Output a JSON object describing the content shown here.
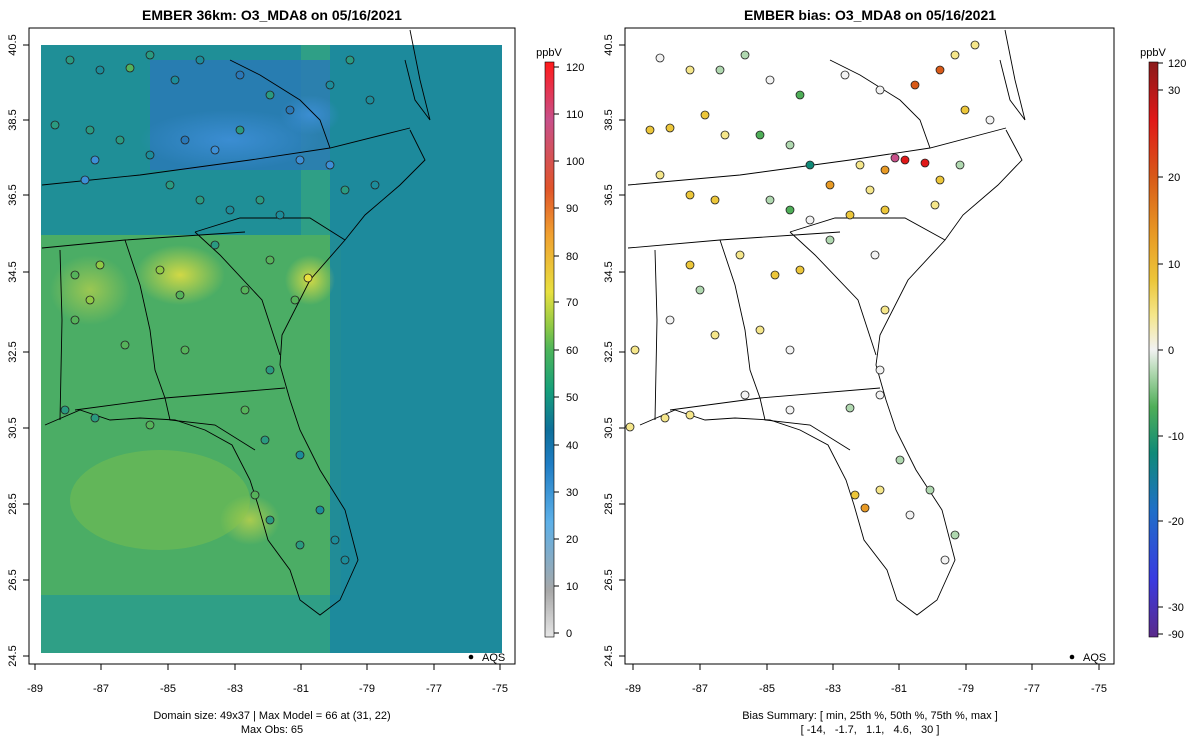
{
  "colors": {
    "ember_ramp": [
      "#e6e6e6",
      "#a8a8a8",
      "#5db0e8",
      "#1f7dc4",
      "#0e6f9a",
      "#17a07a",
      "#4db55a",
      "#8fc945",
      "#e8e040",
      "#f0a030",
      "#e0542a",
      "#c8508a",
      "#ff1a1a"
    ],
    "bias_ramp": [
      "#5a2a8a",
      "#3a3ae0",
      "#1f6fc8",
      "#108a78",
      "#4fae58",
      "#b0d8b0",
      "#f2f2f2",
      "#f5e68a",
      "#ecc63a",
      "#e89a25",
      "#d85a18",
      "#e01818",
      "#8a1a1a"
    ],
    "map_lines": "#000000",
    "frame": "#000000"
  },
  "left_panel": {
    "title": "EMBER 36km: O3_MDA8 on 05/16/2021",
    "x_ticks": [
      "-89",
      "-87",
      "-85",
      "-83",
      "-81",
      "-79",
      "-77",
      "-75"
    ],
    "y_ticks": [
      "24.5",
      "26.5",
      "28.5",
      "30.5",
      "32.5",
      "34.5",
      "36.5",
      "38.5",
      "40.5"
    ],
    "legend_label": "AQS",
    "footer_line1": "Domain size: 49x37 | Max Model = 66 at (31, 22)",
    "footer_line2": "Max Obs: 65",
    "colorbar": {
      "unit": "ppbV",
      "ticks": [
        "120",
        "110",
        "100",
        "90",
        "80",
        "70",
        "60",
        "50",
        "40",
        "30",
        "20",
        "10",
        "0"
      ]
    }
  },
  "right_panel": {
    "title": "EMBER bias: O3_MDA8 on 05/16/2021",
    "x_ticks": [
      "-89",
      "-87",
      "-85",
      "-83",
      "-81",
      "-79",
      "-77",
      "-75"
    ],
    "y_ticks": [
      "24.5",
      "26.5",
      "28.5",
      "30.5",
      "32.5",
      "34.5",
      "36.5",
      "38.5",
      "40.5"
    ],
    "legend_label": "AQS",
    "footer_line1": "Bias Summary: [ min, 25th %, 50th %, 75th %, max ]",
    "footer_line2": "[ -14,   -1.7,   1.1,   4.6,   30 ]",
    "colorbar": {
      "unit": "ppbV",
      "ticks": [
        "120",
        "30",
        "20",
        "10",
        "0",
        "-10",
        "-20",
        "-30",
        "-90"
      ]
    }
  }
}
